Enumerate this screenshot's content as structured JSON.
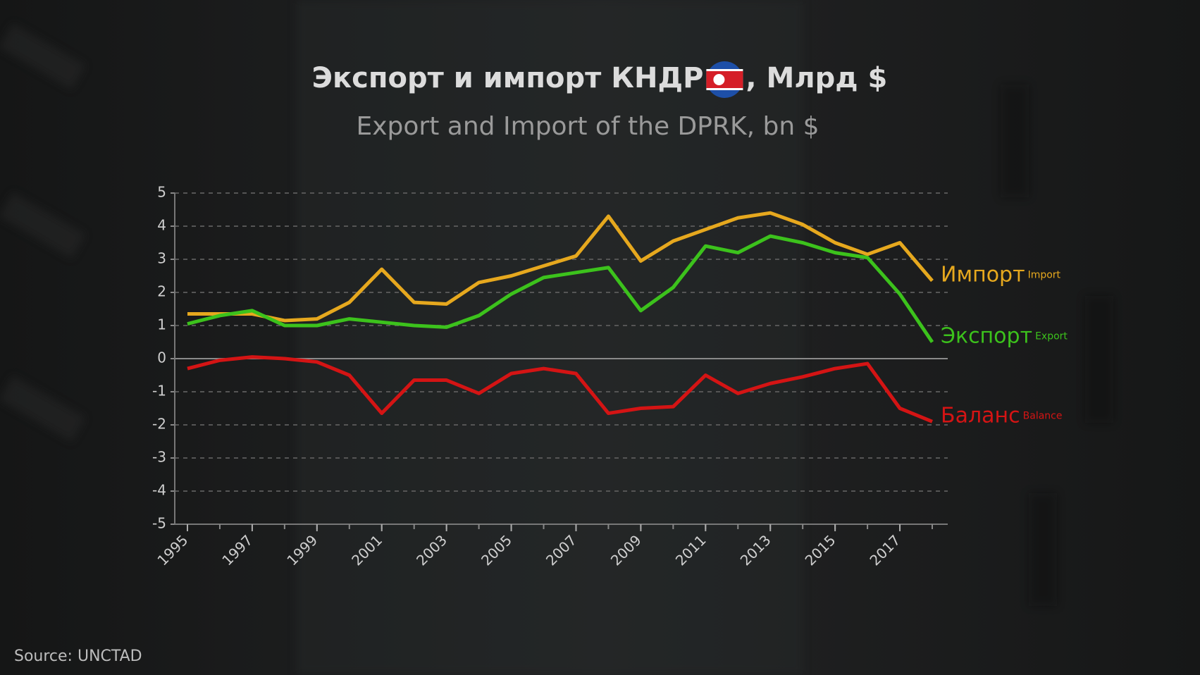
{
  "chart_data": {
    "type": "line",
    "title": "Экспорт и импорт КНДР",
    "title_suffix": ", Млрд $",
    "subtitle": "Export and Import of the DPRK, bn $",
    "source": "Source: UNCTAD",
    "x": [
      1995,
      1996,
      1997,
      1998,
      1999,
      2000,
      2001,
      2002,
      2003,
      2004,
      2005,
      2006,
      2007,
      2008,
      2009,
      2010,
      2011,
      2012,
      2013,
      2014,
      2015,
      2016,
      2017,
      2018
    ],
    "xlim": [
      1995,
      2018
    ],
    "xticks": [
      1995,
      1997,
      1999,
      2001,
      2003,
      2005,
      2007,
      2009,
      2011,
      2013,
      2015,
      2017
    ],
    "ylim": [
      -5,
      5
    ],
    "yticks": [
      -5,
      -4,
      -3,
      -2,
      -1,
      0,
      1,
      2,
      3,
      4,
      5
    ],
    "grid": true,
    "series": [
      {
        "name": "Импорт",
        "name_en": "Import",
        "color": "#e6a81e",
        "values": [
          1.35,
          1.35,
          1.35,
          1.15,
          1.2,
          1.7,
          2.7,
          1.7,
          1.65,
          2.3,
          2.5,
          2.8,
          3.1,
          4.3,
          2.95,
          3.55,
          3.9,
          4.25,
          4.4,
          4.05,
          3.5,
          3.15,
          3.5,
          2.35
        ]
      },
      {
        "name": "Экспорт",
        "name_en": "Export",
        "color": "#3cc21c",
        "values": [
          1.05,
          1.3,
          1.45,
          1.0,
          1.0,
          1.2,
          1.1,
          1.0,
          0.95,
          1.3,
          1.95,
          2.45,
          2.6,
          2.75,
          1.45,
          2.15,
          3.4,
          3.2,
          3.7,
          3.5,
          3.2,
          3.05,
          1.95,
          0.5
        ]
      },
      {
        "name": "Баланс",
        "name_en": "Balance",
        "color": "#d41414",
        "values": [
          -0.3,
          -0.05,
          0.05,
          0,
          -0.1,
          -0.5,
          -1.65,
          -0.65,
          -0.65,
          -1.05,
          -0.45,
          -0.3,
          -0.45,
          -1.65,
          -1.5,
          -1.45,
          -0.5,
          -1.05,
          -0.75,
          -0.55,
          -0.3,
          -0.15,
          -1.5,
          -1.9
        ]
      }
    ]
  }
}
